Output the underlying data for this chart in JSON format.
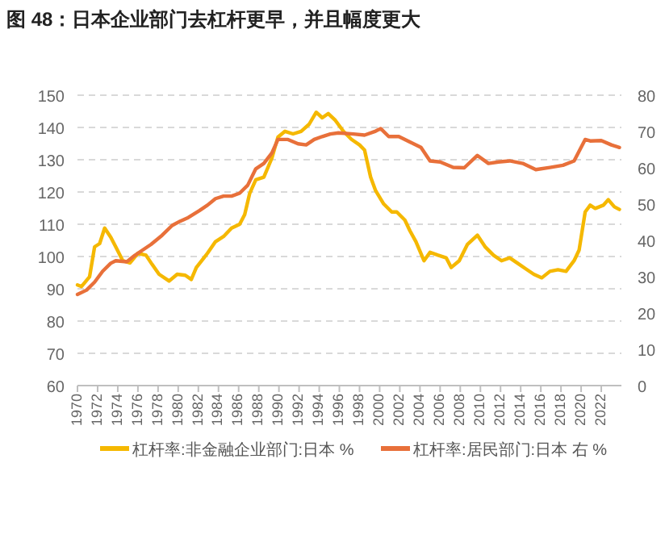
{
  "chart_data": {
    "type": "line",
    "title": "图 48：日本企业部门去杠杆更早，并且幅度更大",
    "xlim": [
      1970,
      2024
    ],
    "xticks": [
      1970,
      1972,
      1974,
      1976,
      1978,
      1980,
      1982,
      1984,
      1986,
      1988,
      1990,
      1992,
      1994,
      1996,
      1998,
      2000,
      2002,
      2004,
      2006,
      2008,
      2010,
      2012,
      2014,
      2016,
      2018,
      2020,
      2022
    ],
    "ylim": [
      60,
      150
    ],
    "yticks": [
      60,
      70,
      80,
      90,
      100,
      110,
      120,
      130,
      140,
      150
    ],
    "y2lim": [
      0,
      80
    ],
    "y2ticks": [
      0,
      10,
      20,
      30,
      40,
      50,
      60,
      70,
      80
    ],
    "grid": "y",
    "legend": "bottom",
    "marker": "none",
    "line_style": "solid",
    "series": [
      {
        "name": "杠杆率:非金融企业部门:日本 %",
        "color": "#f5b800",
        "axis": "y",
        "x": [
          1970,
          1970.4,
          1971.2,
          1971.7,
          1972.2,
          1972.7,
          1973.3,
          1973.8,
          1974.5,
          1975.2,
          1976,
          1976.8,
          1977.4,
          1978.1,
          1979.1,
          1979.9,
          1980.7,
          1981.3,
          1981.8,
          1982.9,
          1983.7,
          1984.5,
          1985.3,
          1986.1,
          1986.6,
          1987.1,
          1987.7,
          1988.5,
          1989.3,
          1989.9,
          1990.6,
          1991.4,
          1992.2,
          1993,
          1993.7,
          1994.3,
          1994.9,
          1995.6,
          1996.4,
          1997.2,
          1998,
          1998.5,
          1999.1,
          1999.6,
          2000.4,
          2001.2,
          2001.7,
          2002.5,
          2003,
          2003.6,
          2004.4,
          2005,
          2005.8,
          2006.6,
          2007.1,
          2007.9,
          2008.7,
          2009.7,
          2010.5,
          2011.3,
          2012.1,
          2012.9,
          2013.7,
          2014.5,
          2015.3,
          2016.1,
          2016.9,
          2017.7,
          2018.5,
          2019.3,
          2019.8,
          2020.4,
          2020.9,
          2021.4,
          2022.2,
          2022.7,
          2023.3,
          2023.8
        ],
        "values": [
          91.2,
          90.7,
          93.7,
          103,
          104,
          108.8,
          106,
          103,
          98.7,
          98,
          101,
          100.4,
          97.6,
          94.5,
          92.4,
          94.5,
          94.2,
          92.9,
          96.6,
          101,
          104.6,
          106.2,
          108.8,
          110,
          113,
          119.6,
          123.8,
          124.6,
          130.5,
          137,
          138.8,
          138,
          138.8,
          141,
          144.7,
          143,
          144.3,
          142.2,
          138.8,
          136.3,
          134.6,
          133,
          124.6,
          120.4,
          116.3,
          113.8,
          113.8,
          111.3,
          108,
          104.6,
          98.7,
          101.3,
          100.4,
          99.6,
          96.6,
          98.7,
          103.7,
          106.6,
          102.9,
          100.4,
          98.7,
          99.6,
          97.9,
          96.2,
          94.5,
          93.4,
          95.4,
          95.9,
          95.4,
          98.7,
          102,
          113.8,
          115.9,
          114.9,
          115.9,
          117.6,
          115.4,
          114.6
        ]
      },
      {
        "name": "杠杆率:居民部门:日本 右 %",
        "color": "#e8703a",
        "axis": "y2",
        "x": [
          1970,
          1970.9,
          1971.7,
          1972.5,
          1973.3,
          1973.8,
          1974.9,
          1975.7,
          1976.5,
          1977.3,
          1978.4,
          1979.4,
          1980.2,
          1981,
          1982.1,
          1982.9,
          1983.7,
          1984.5,
          1985.3,
          1986.1,
          1986.9,
          1987.7,
          1988.5,
          1989.3,
          1989.9,
          1990.9,
          1991.9,
          1992.7,
          1993.5,
          1994.3,
          1995.1,
          1995.9,
          1997.4,
          1998.5,
          1999.6,
          2000.1,
          2000.9,
          2001.9,
          2003,
          2004.1,
          2005,
          2006,
          2007.3,
          2008.4,
          2009.7,
          2010.8,
          2011.8,
          2012.9,
          2014.2,
          2015.5,
          2016.9,
          2018.2,
          2019.3,
          2020.4,
          2020.9,
          2022,
          2023,
          2023.8
        ],
        "values": [
          25.1,
          26.3,
          28.5,
          31.5,
          33.7,
          34.4,
          34.1,
          35.9,
          37.4,
          38.9,
          41.4,
          44.1,
          45.3,
          46.3,
          48.2,
          49.7,
          51.5,
          52.2,
          52.2,
          53,
          55.2,
          59.7,
          61.2,
          64.1,
          67.8,
          67.8,
          66.6,
          66.3,
          67.8,
          68.6,
          69.3,
          69.6,
          69.3,
          69,
          70.1,
          70.8,
          68.6,
          68.6,
          67.1,
          65.6,
          61.9,
          61.6,
          60.1,
          60,
          63.4,
          61.2,
          61.6,
          61.9,
          61.2,
          59.5,
          60.1,
          60.7,
          61.9,
          67.8,
          67.4,
          67.5,
          66.3,
          65.6
        ]
      }
    ]
  }
}
